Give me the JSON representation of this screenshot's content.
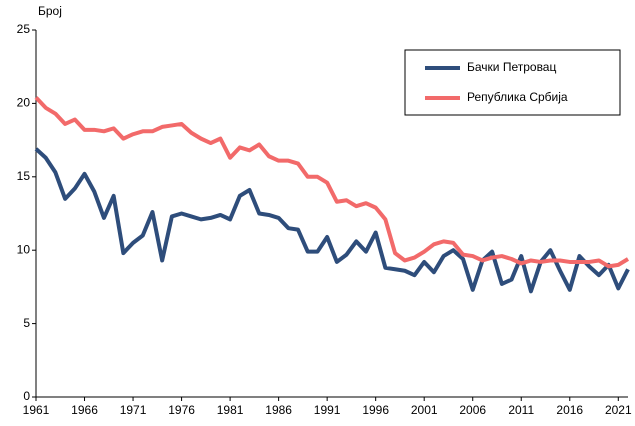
{
  "chart_data": {
    "type": "line",
    "y_label": "Број",
    "x": [
      1961,
      1962,
      1963,
      1964,
      1965,
      1966,
      1967,
      1968,
      1969,
      1970,
      1971,
      1972,
      1973,
      1974,
      1975,
      1976,
      1977,
      1978,
      1979,
      1980,
      1981,
      1982,
      1983,
      1984,
      1985,
      1986,
      1987,
      1988,
      1989,
      1990,
      1991,
      1992,
      1993,
      1994,
      1995,
      1996,
      1997,
      1998,
      1999,
      2000,
      2001,
      2002,
      2003,
      2004,
      2005,
      2006,
      2007,
      2008,
      2009,
      2010,
      2011,
      2012,
      2013,
      2014,
      2015,
      2016,
      2017,
      2018,
      2019,
      2020,
      2021,
      2022
    ],
    "series": [
      {
        "name": "Бачки Петровац",
        "color": "#2e4d7b",
        "values": [
          16.9,
          16.3,
          15.3,
          13.5,
          14.2,
          15.2,
          14.0,
          12.2,
          13.7,
          9.8,
          10.5,
          11.0,
          12.6,
          9.3,
          12.3,
          12.5,
          12.3,
          12.1,
          12.2,
          12.4,
          12.1,
          13.7,
          14.1,
          12.5,
          12.4,
          12.2,
          11.5,
          11.4,
          9.9,
          9.9,
          10.9,
          9.2,
          9.7,
          10.6,
          9.9,
          11.2,
          8.8,
          8.7,
          8.6,
          8.3,
          9.2,
          8.5,
          9.6,
          10.0,
          9.4,
          7.3,
          9.3,
          9.9,
          7.7,
          8.0,
          9.6,
          7.2,
          9.2,
          10.0,
          8.6,
          7.3,
          9.6,
          8.9,
          8.3,
          9.0,
          7.4,
          8.7
        ]
      },
      {
        "name": "Република Србија",
        "color": "#f26a6a",
        "values": [
          20.4,
          19.7,
          19.3,
          18.6,
          18.9,
          18.2,
          18.2,
          18.1,
          18.3,
          17.6,
          17.9,
          18.1,
          18.1,
          18.4,
          18.5,
          18.6,
          18.0,
          17.6,
          17.3,
          17.6,
          16.3,
          17.0,
          16.8,
          17.2,
          16.4,
          16.1,
          16.1,
          15.9,
          15.0,
          15.0,
          14.6,
          13.3,
          13.4,
          13.0,
          13.2,
          12.9,
          12.1,
          9.8,
          9.3,
          9.5,
          9.9,
          10.4,
          10.6,
          10.5,
          9.7,
          9.6,
          9.3,
          9.5,
          9.6,
          9.4,
          9.1,
          9.3,
          9.2,
          9.3,
          9.3,
          9.2,
          9.2,
          9.2,
          9.3,
          8.9,
          9.0,
          9.4
        ]
      }
    ],
    "xlim": [
      1961,
      2022
    ],
    "xticks": [
      1961,
      1966,
      1971,
      1976,
      1981,
      1986,
      1991,
      1996,
      2001,
      2006,
      2011,
      2016,
      2021
    ],
    "ylim": [
      0,
      25
    ],
    "yticks": [
      0,
      5,
      10,
      15,
      20,
      25
    ],
    "legend": "upper-right"
  }
}
